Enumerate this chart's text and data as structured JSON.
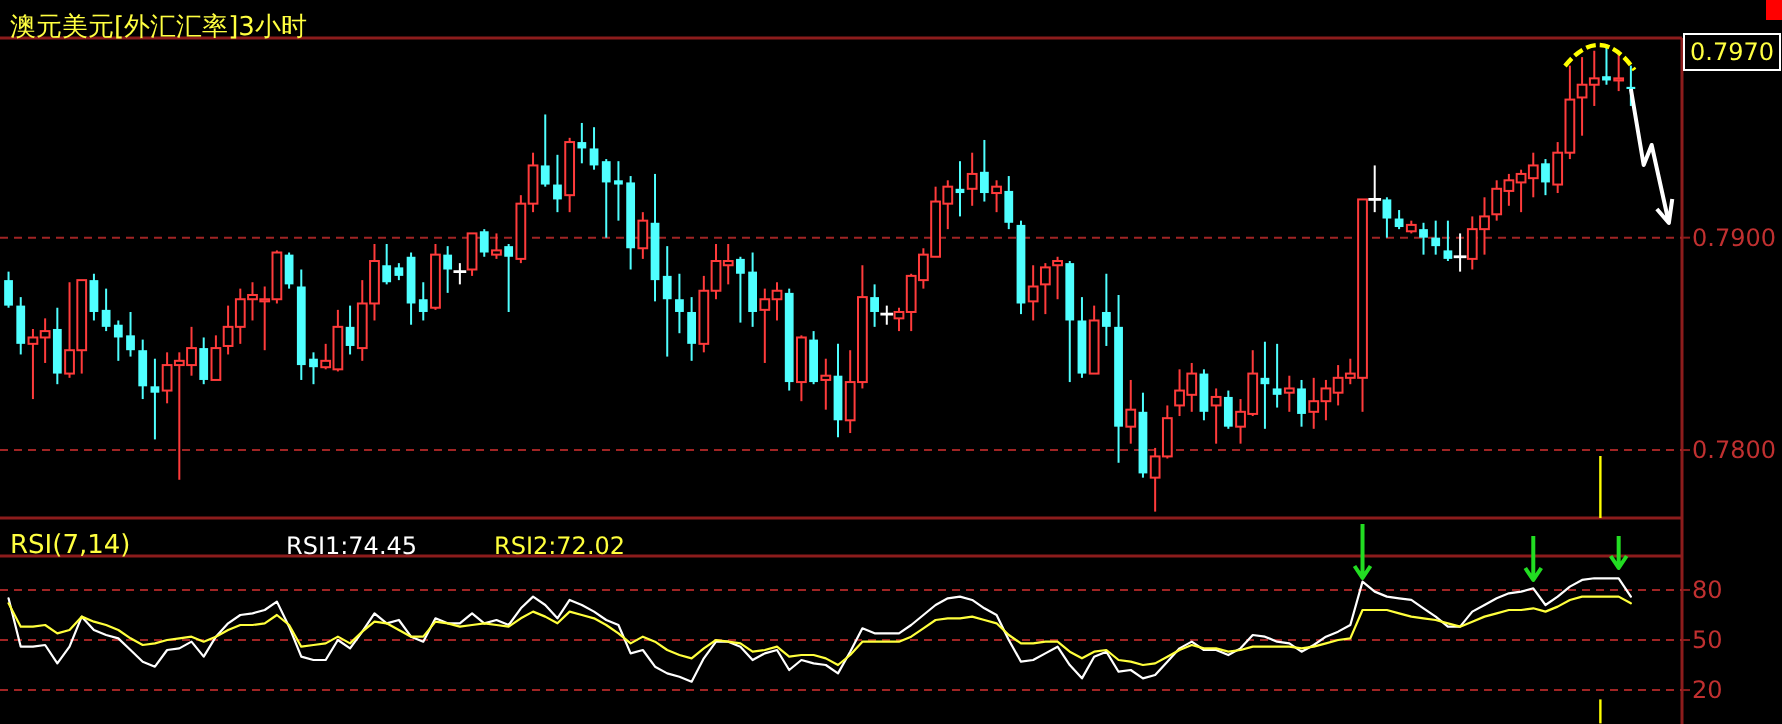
{
  "chart_data": [
    {
      "type": "candlestick",
      "title": "澳元美元[外汇汇率]3小时",
      "categories": [
        null,
        null,
        null,
        null,
        null,
        null,
        null,
        null,
        null,
        null,
        null,
        null,
        null,
        null,
        null,
        null,
        null,
        null,
        null,
        null,
        null,
        null,
        null,
        null,
        null,
        null,
        null,
        null,
        null,
        null,
        null,
        null,
        null,
        null,
        null,
        null,
        null,
        null,
        null,
        null,
        null,
        null,
        null,
        null,
        null,
        null,
        null,
        null,
        null,
        null,
        null,
        null,
        null,
        null,
        null,
        null,
        null,
        null,
        null,
        null,
        null,
        null,
        null,
        null,
        null,
        null,
        null,
        null,
        null,
        null,
        null,
        null,
        null,
        null,
        null,
        null,
        null,
        null,
        null,
        null,
        null,
        null,
        null,
        null,
        null,
        null,
        null,
        null,
        null,
        null,
        null,
        null,
        null,
        null,
        null,
        null,
        null,
        null,
        null,
        null,
        null,
        null,
        null,
        null,
        null,
        null,
        null,
        null,
        null,
        null,
        null,
        null,
        null,
        null,
        null,
        null,
        null,
        null,
        null,
        null,
        null,
        null,
        null,
        null,
        null,
        null,
        null,
        null,
        null,
        null,
        null,
        null,
        null,
        null
      ],
      "ohlc": [
        [
          0.788,
          0.7884,
          0.7867,
          0.7868
        ],
        [
          0.7868,
          0.7872,
          0.7845,
          0.785
        ],
        [
          0.785,
          0.7857,
          0.7824,
          0.7853
        ],
        [
          0.7853,
          0.7862,
          0.7841,
          0.7856
        ],
        [
          0.7857,
          0.7867,
          0.7831,
          0.7836
        ],
        [
          0.7836,
          0.7879,
          0.7834,
          0.7847
        ],
        [
          0.7847,
          0.788,
          0.7836,
          0.788
        ],
        [
          0.788,
          0.7883,
          0.7861,
          0.7865
        ],
        [
          0.7866,
          0.7876,
          0.7856,
          0.7858
        ],
        [
          0.7859,
          0.7861,
          0.7842,
          0.7853
        ],
        [
          0.7854,
          0.7865,
          0.7844,
          0.7847
        ],
        [
          0.7847,
          0.7852,
          0.7824,
          0.783
        ],
        [
          0.783,
          0.7843,
          0.7805,
          0.7827
        ],
        [
          0.7828,
          0.7846,
          0.7822,
          0.784
        ],
        [
          0.784,
          0.7846,
          0.7786,
          0.7842
        ],
        [
          0.784,
          0.7858,
          0.7835,
          0.7848
        ],
        [
          0.7848,
          0.7853,
          0.7831,
          0.7833
        ],
        [
          0.7833,
          0.7854,
          0.7833,
          0.7848
        ],
        [
          0.7849,
          0.7868,
          0.7845,
          0.7858
        ],
        [
          0.7858,
          0.7876,
          0.785,
          0.7871
        ],
        [
          0.7871,
          0.7879,
          0.7861,
          0.7873
        ],
        [
          0.787,
          0.7877,
          0.7847,
          0.7871
        ],
        [
          0.7871,
          0.7894,
          0.7869,
          0.7893
        ],
        [
          0.7892,
          0.7893,
          0.7876,
          0.7878
        ],
        [
          0.7877,
          0.7885,
          0.7833,
          0.784
        ],
        [
          0.7843,
          0.7846,
          0.7831,
          0.7839
        ],
        [
          0.7839,
          0.785,
          0.7838,
          0.7842
        ],
        [
          0.7838,
          0.7866,
          0.7837,
          0.7858
        ],
        [
          0.7858,
          0.7868,
          0.7845,
          0.7849
        ],
        [
          0.7848,
          0.788,
          0.7842,
          0.7869
        ],
        [
          0.7869,
          0.7897,
          0.7861,
          0.7889
        ],
        [
          0.7887,
          0.7897,
          0.7878,
          0.7879
        ],
        [
          0.7886,
          0.7888,
          0.788,
          0.7882
        ],
        [
          0.7891,
          0.7893,
          0.7859,
          0.7869
        ],
        [
          0.7871,
          0.7879,
          0.7861,
          0.7865
        ],
        [
          0.7867,
          0.7897,
          0.7866,
          0.7892
        ],
        [
          0.7892,
          0.7896,
          0.7874,
          0.7885
        ],
        [
          0.7884,
          0.7888,
          0.7878,
          0.7884
        ],
        [
          0.7885,
          0.7902,
          0.7882,
          0.7902
        ],
        [
          0.7903,
          0.7904,
          0.7891,
          0.7893
        ],
        [
          0.7892,
          0.7902,
          0.789,
          0.7894
        ],
        [
          0.7896,
          0.7897,
          0.7865,
          0.7891
        ],
        [
          0.789,
          0.792,
          0.7888,
          0.7916
        ],
        [
          0.7916,
          0.794,
          0.7912,
          0.7934
        ],
        [
          0.7934,
          0.7958,
          0.7924,
          0.7925
        ],
        [
          0.7925,
          0.7939,
          0.7912,
          0.7918
        ],
        [
          0.792,
          0.7947,
          0.7912,
          0.7945
        ],
        [
          0.7945,
          0.7954,
          0.7935,
          0.7942
        ],
        [
          0.7942,
          0.7952,
          0.7932,
          0.7934
        ],
        [
          0.7936,
          0.7937,
          0.79,
          0.7926
        ],
        [
          0.7927,
          0.7936,
          0.7908,
          0.7925
        ],
        [
          0.7926,
          0.7929,
          0.7885,
          0.7895
        ],
        [
          0.7895,
          0.7912,
          0.789,
          0.7908
        ],
        [
          0.7907,
          0.793,
          0.787,
          0.788
        ],
        [
          0.7882,
          0.7896,
          0.7844,
          0.7871
        ],
        [
          0.7871,
          0.7883,
          0.7855,
          0.7865
        ],
        [
          0.7865,
          0.7872,
          0.7842,
          0.785
        ],
        [
          0.785,
          0.7882,
          0.7846,
          0.7875
        ],
        [
          0.7875,
          0.7897,
          0.7871,
          0.7889
        ],
        [
          0.7887,
          0.7897,
          0.7878,
          0.7889
        ],
        [
          0.789,
          0.7891,
          0.786,
          0.7883
        ],
        [
          0.7884,
          0.7893,
          0.7858,
          0.7865
        ],
        [
          0.7866,
          0.7876,
          0.7841,
          0.7871
        ],
        [
          0.7871,
          0.7879,
          0.7861,
          0.7875
        ],
        [
          0.7874,
          0.7876,
          0.7828,
          0.7832
        ],
        [
          0.7832,
          0.7854,
          0.7823,
          0.7853
        ],
        [
          0.7852,
          0.7856,
          0.7831,
          0.7832
        ],
        [
          0.7833,
          0.7843,
          0.7819,
          0.7835
        ],
        [
          0.7835,
          0.785,
          0.7806,
          0.7814
        ],
        [
          0.7814,
          0.7847,
          0.7808,
          0.7832
        ],
        [
          0.7832,
          0.7887,
          0.7829,
          0.7872
        ],
        [
          0.7872,
          0.7878,
          0.7858,
          0.7865
        ],
        [
          0.7864,
          0.7868,
          0.7859,
          0.7864
        ],
        [
          0.7862,
          0.7867,
          0.7856,
          0.7865
        ],
        [
          0.7865,
          0.7883,
          0.7856,
          0.7882
        ],
        [
          0.788,
          0.7895,
          0.7876,
          0.7892
        ],
        [
          0.7891,
          0.7924,
          0.7891,
          0.7917
        ],
        [
          0.7916,
          0.7927,
          0.7904,
          0.7924
        ],
        [
          0.7923,
          0.7936,
          0.791,
          0.7921
        ],
        [
          0.7923,
          0.794,
          0.7915,
          0.793
        ],
        [
          0.7931,
          0.7946,
          0.7917,
          0.7921
        ],
        [
          0.7921,
          0.7927,
          0.7912,
          0.7924
        ],
        [
          0.7922,
          0.7929,
          0.7904,
          0.7907
        ],
        [
          0.7906,
          0.7908,
          0.7864,
          0.7869
        ],
        [
          0.787,
          0.7887,
          0.7861,
          0.7877
        ],
        [
          0.7878,
          0.7888,
          0.7864,
          0.7886
        ],
        [
          0.7887,
          0.7891,
          0.7871,
          0.7889
        ],
        [
          0.7888,
          0.7889,
          0.7832,
          0.7861
        ],
        [
          0.7861,
          0.7872,
          0.7834,
          0.7836
        ],
        [
          0.7836,
          0.7868,
          0.7836,
          0.7861
        ],
        [
          0.7865,
          0.7883,
          0.7849,
          0.7858
        ],
        [
          0.7858,
          0.7873,
          0.7794,
          0.7811
        ],
        [
          0.7811,
          0.7833,
          0.7803,
          0.7819
        ],
        [
          0.7818,
          0.7827,
          0.7787,
          0.7789
        ],
        [
          0.7787,
          0.7801,
          0.7771,
          0.7797
        ],
        [
          0.7797,
          0.7821,
          0.7796,
          0.7815
        ],
        [
          0.7821,
          0.7838,
          0.7816,
          0.7828
        ],
        [
          0.7826,
          0.7841,
          0.7818,
          0.7836
        ],
        [
          0.7836,
          0.7838,
          0.7814,
          0.7818
        ],
        [
          0.7821,
          0.7829,
          0.7803,
          0.7825
        ],
        [
          0.7825,
          0.7828,
          0.781,
          0.7811
        ],
        [
          0.7811,
          0.7824,
          0.7803,
          0.7818
        ],
        [
          0.7817,
          0.7847,
          0.7816,
          0.7836
        ],
        [
          0.7834,
          0.7851,
          0.781,
          0.7831
        ],
        [
          0.7829,
          0.785,
          0.782,
          0.7826
        ],
        [
          0.7827,
          0.7835,
          0.7818,
          0.7829
        ],
        [
          0.7829,
          0.7833,
          0.7811,
          0.7817
        ],
        [
          0.7818,
          0.7834,
          0.781,
          0.7823
        ],
        [
          0.7823,
          0.7833,
          0.7814,
          0.7829
        ],
        [
          0.7827,
          0.784,
          0.7821,
          0.7834
        ],
        [
          0.7834,
          0.7843,
          0.7831,
          0.7836
        ],
        [
          0.7834,
          0.7918,
          0.7818,
          0.7918
        ],
        [
          0.7918,
          0.7934,
          0.7912,
          0.7918
        ],
        [
          0.7918,
          0.7919,
          0.79,
          0.7909
        ],
        [
          0.7909,
          0.7913,
          0.7904,
          0.7905
        ],
        [
          0.7903,
          0.7908,
          0.7902,
          0.7906
        ],
        [
          0.7904,
          0.7907,
          0.7892,
          0.79
        ],
        [
          0.79,
          0.7908,
          0.7892,
          0.7896
        ],
        [
          0.7894,
          0.7908,
          0.7889,
          0.789
        ],
        [
          0.7891,
          0.7902,
          0.7884,
          0.7891
        ],
        [
          0.789,
          0.791,
          0.7885,
          0.7904
        ],
        [
          0.7904,
          0.7919,
          0.7892,
          0.791
        ],
        [
          0.7911,
          0.7927,
          0.7908,
          0.7923
        ],
        [
          0.7922,
          0.793,
          0.7915,
          0.7927
        ],
        [
          0.7926,
          0.7932,
          0.7912,
          0.793
        ],
        [
          0.7928,
          0.794,
          0.7919,
          0.7934
        ],
        [
          0.7935,
          0.7937,
          0.792,
          0.7926
        ],
        [
          0.7925,
          0.7945,
          0.7921,
          0.794
        ],
        [
          0.794,
          0.7981,
          0.7937,
          0.7965
        ],
        [
          0.7966,
          0.7985,
          0.7948,
          0.7972
        ],
        [
          0.7972,
          0.7988,
          0.7962,
          0.7975
        ],
        [
          0.7976,
          0.7991,
          0.7972,
          0.7974
        ],
        [
          0.7974,
          0.7988,
          0.7969,
          0.7975
        ],
        [
          0.7971,
          0.7981,
          0.7962,
          0.797
        ]
      ],
      "ylim": [
        0.7768,
        0.7994
      ],
      "yticks": [
        {
          "value": 0.79,
          "label": "0.7900"
        },
        {
          "value": 0.78,
          "label": "0.7800"
        }
      ],
      "grid": "y",
      "tick_labels": "y",
      "annotations": [
        "0.7970"
      ]
    },
    {
      "type": "line",
      "title": "RSI(7,14)",
      "categories": [
        null,
        null,
        null,
        null,
        null,
        null,
        null,
        null,
        null,
        null,
        null,
        null,
        null,
        null,
        null,
        null,
        null,
        null,
        null,
        null,
        null,
        null,
        null,
        null,
        null,
        null,
        null,
        null,
        null,
        null,
        null,
        null,
        null,
        null,
        null,
        null,
        null,
        null,
        null,
        null,
        null,
        null,
        null,
        null,
        null,
        null,
        null,
        null,
        null,
        null,
        null,
        null,
        null,
        null,
        null,
        null,
        null,
        null,
        null,
        null,
        null,
        null,
        null,
        null,
        null,
        null,
        null,
        null,
        null,
        null,
        null,
        null,
        null,
        null,
        null,
        null,
        null,
        null,
        null,
        null,
        null,
        null,
        null,
        null,
        null,
        null,
        null,
        null,
        null,
        null,
        null,
        null,
        null,
        null,
        null,
        null,
        null,
        null,
        null,
        null,
        null,
        null,
        null,
        null,
        null,
        null,
        null,
        null,
        null,
        null,
        null,
        null,
        null,
        null,
        null,
        null,
        null,
        null,
        null,
        null,
        null,
        null,
        null,
        null,
        null,
        null,
        null,
        null,
        null,
        null,
        null,
        null,
        null,
        null
      ],
      "series": [
        {
          "color": "#ffffff",
          "values": [
            75,
            46,
            46,
            47,
            36,
            46,
            64,
            56,
            53,
            51,
            44,
            37,
            34,
            44,
            45,
            49,
            40,
            52,
            60,
            65,
            66,
            68,
            73,
            58,
            40,
            38,
            38,
            50,
            45,
            55,
            66,
            60,
            62,
            52,
            49,
            63,
            60,
            60,
            66,
            60,
            62,
            59,
            69,
            76,
            71,
            63,
            74,
            71,
            67,
            62,
            59,
            42,
            44,
            34,
            30,
            28,
            25,
            39,
            49,
            49,
            46,
            38,
            42,
            44,
            32,
            38,
            36,
            35,
            30,
            43,
            57,
            54,
            54,
            54,
            59,
            65,
            71,
            75,
            76,
            74,
            69,
            65,
            50,
            37,
            38,
            42,
            46,
            35,
            27,
            40,
            43,
            31,
            32,
            27,
            29,
            37,
            45,
            49,
            44,
            44,
            41,
            45,
            53,
            52,
            49,
            48,
            43,
            47,
            52,
            55,
            59,
            85,
            79,
            76,
            75,
            74,
            69,
            64,
            58,
            58,
            67,
            71,
            75,
            78,
            79,
            81,
            71,
            76,
            82,
            86,
            87,
            87,
            87,
            76
          ]
        },
        {
          "color": "#ffff3c",
          "values": [
            72,
            58,
            58,
            59,
            54,
            56,
            64,
            61,
            59,
            56,
            51,
            47,
            48,
            50,
            51,
            52,
            49,
            52,
            56,
            59,
            59,
            60,
            65,
            59,
            46,
            47,
            48,
            52,
            48,
            55,
            61,
            60,
            56,
            52,
            52,
            61,
            60,
            58,
            59,
            60,
            59,
            58,
            63,
            67,
            64,
            60,
            67,
            65,
            63,
            59,
            54,
            48,
            52,
            49,
            44,
            41,
            39,
            45,
            50,
            49,
            48,
            43,
            44,
            46,
            40,
            41,
            41,
            39,
            35,
            41,
            49,
            49,
            49,
            49,
            52,
            57,
            62,
            63,
            63,
            64,
            62,
            60,
            53,
            48,
            48,
            49,
            49,
            43,
            39,
            43,
            44,
            38,
            37,
            35,
            36,
            40,
            44,
            47,
            45,
            45,
            43,
            44,
            46,
            46,
            46,
            46,
            45,
            46,
            48,
            50,
            51,
            68,
            68,
            68,
            66,
            64,
            63,
            62,
            60,
            58,
            61,
            64,
            66,
            68,
            68,
            69,
            67,
            70,
            74,
            76,
            76,
            76,
            76,
            72
          ]
        }
      ],
      "ylim": [
        0,
        100
      ],
      "yticks": [
        80,
        50,
        20
      ],
      "grid": "y",
      "tick_labels": "y",
      "annotations": [
        "RSI1:74.45",
        "RSI2:72.02"
      ]
    }
  ]
}
